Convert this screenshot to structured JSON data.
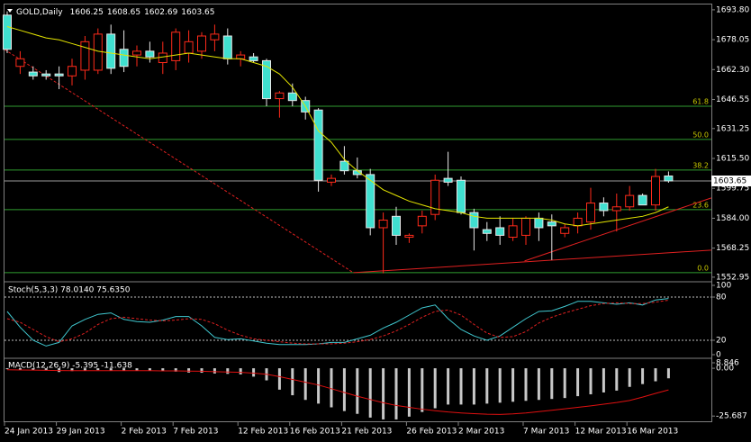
{
  "chart_data": [
    {
      "type": "candlestick",
      "title": "GOLD,Daily",
      "categories": [
        "24 Jan 2013",
        null,
        null,
        null,
        "29 Jan 2013",
        null,
        null,
        null,
        null,
        "2 Feb 2013",
        null,
        null,
        null,
        "7 Feb 2013",
        null,
        null,
        null,
        null,
        "12 Feb 2013",
        null,
        null,
        null,
        "16 Feb 2013",
        null,
        null,
        null,
        "21 Feb 2013",
        null,
        null,
        null,
        null,
        "26 Feb 2013",
        null,
        null,
        null,
        "2 Mar 2013",
        null,
        null,
        null,
        null,
        "7 Mar 2013",
        null,
        null,
        null,
        "12 Mar 2013",
        null,
        null,
        null,
        "16 Mar 2013",
        null,
        null,
        null
      ],
      "open": [
        1691,
        1664,
        1661,
        1660,
        1660,
        1659,
        1662,
        1662,
        1681,
        1673,
        1670,
        1672,
        1666,
        1667,
        1671,
        1672,
        1678,
        1680,
        1668,
        1669,
        1667,
        1647,
        1650,
        1646,
        1641,
        1603,
        1614,
        1609,
        1607,
        1579,
        1585,
        1574,
        1580,
        1586,
        1605,
        1604,
        1587,
        1578,
        1579,
        1574,
        1575,
        1584,
        1582,
        1576,
        1580,
        1582,
        1592,
        1588,
        1590,
        1596,
        1591,
        1606.25
      ],
      "high": [
        1693,
        1672,
        1664,
        1662,
        1664,
        1668,
        1680,
        1684,
        1686,
        1683,
        1675,
        1677,
        1677,
        1684,
        1683,
        1682,
        1686,
        1684,
        1672,
        1671,
        1668,
        1651,
        1655,
        1648,
        1642,
        1607,
        1622,
        1616,
        1610,
        1587,
        1590,
        1576,
        1588,
        1607,
        1619,
        1606,
        1589,
        1582,
        1585,
        1584,
        1585,
        1587,
        1586,
        1581,
        1587,
        1600,
        1595,
        1597,
        1601,
        1597,
        1610,
        1608.65
      ],
      "low": [
        1671,
        1660,
        1657,
        1657,
        1652,
        1654,
        1657,
        1660,
        1660,
        1661,
        1664,
        1666,
        1660,
        1662,
        1666,
        1668,
        1672,
        1665,
        1664,
        1666,
        1643,
        1637,
        1643,
        1636,
        1598,
        1601,
        1607,
        1605,
        1575,
        1555,
        1570,
        1571,
        1576,
        1583,
        1601,
        1586,
        1567,
        1572,
        1570,
        1572,
        1570,
        1572,
        1562,
        1574,
        1576,
        1578,
        1585,
        1577,
        1588,
        1591,
        1588,
        1602.69
      ],
      "close": [
        1673,
        1668,
        1659,
        1659,
        1659,
        1664,
        1677,
        1681,
        1663,
        1664,
        1672,
        1669,
        1671,
        1682,
        1677,
        1680,
        1681,
        1668,
        1670,
        1667,
        1647,
        1650,
        1646,
        1640,
        1604,
        1605,
        1609,
        1607,
        1579,
        1583,
        1575,
        1575,
        1585,
        1604,
        1603,
        1587,
        1579,
        1576,
        1575,
        1580,
        1584,
        1579,
        1580,
        1579,
        1584,
        1592,
        1588,
        1590,
        1596,
        1591,
        1606,
        1603.65
      ],
      "colors": {
        "up": "#ff2a1a",
        "down": "#40e0d0"
      },
      "ma": {
        "color": "#e6e600",
        "values": [
          1685,
          1683,
          1681,
          1679,
          1678,
          1676,
          1674,
          1672,
          1671,
          1670,
          1669,
          1668,
          1669,
          1670,
          1671,
          1670,
          1669,
          1668,
          1668,
          1666,
          1664,
          1660,
          1653,
          1643,
          1630,
          1624,
          1615,
          1609,
          1604,
          1599,
          1596,
          1593,
          1591,
          1589,
          1588,
          1587,
          1585,
          1584,
          1584,
          1584,
          1584,
          1584,
          1583,
          1581,
          1580,
          1581,
          1582,
          1583,
          1584,
          1585,
          1587,
          1590
        ]
      },
      "fib_levels": [
        {
          "value": 1643.0,
          "label": "61.8"
        },
        {
          "value": 1625.5,
          "label": "50.0"
        },
        {
          "value": 1609.4,
          "label": "38.2"
        },
        {
          "value": 1588.5,
          "label": "23.6"
        },
        {
          "value": 1555.3,
          "label": "0.0"
        }
      ],
      "fib_color": "#2f9d2f",
      "trendlines": [
        {
          "x": [
            -0.2,
            26.7
          ],
          "y": [
            1672.9,
            1555.3
          ],
          "color": "#e02020",
          "dashed": true
        },
        {
          "x": [
            26.7,
            54.3
          ],
          "y": [
            1555.3,
            1567.2
          ],
          "color": "#e02020",
          "dashed": false
        },
        {
          "x": [
            39.9,
            54.3
          ],
          "y": [
            1561.5,
            1594.7
          ],
          "color": "#e02020",
          "dashed": false
        }
      ],
      "ylim": [
        1551.0,
        1696.6
      ],
      "yticks": [
        {
          "value": 1693.8,
          "label": "1693.80"
        },
        1678.05,
        {
          "value": 1662.3,
          "label": "1662.30"
        },
        1646.55,
        1631.25,
        {
          "value": 1615.5,
          "label": "1615.50"
        },
        1599.75,
        {
          "value": 1584,
          "label": "1584.00"
        },
        1568.25,
        1552.95
      ]
    },
    {
      "type": "line",
      "title": "Stoch(5,3,3) 78.0140 75.6350",
      "series": [
        {
          "color": "#40c8d0",
          "dashed": false,
          "values": [
            60,
            38,
            20,
            12,
            17,
            40,
            49,
            56,
            58,
            49,
            46,
            45,
            48,
            53,
            53,
            40,
            24,
            21,
            22,
            19,
            16,
            14,
            14,
            14,
            15,
            17,
            17,
            22,
            27,
            37,
            45,
            55,
            65,
            69,
            50,
            35,
            26,
            20,
            26,
            38,
            50,
            60,
            61,
            67,
            74,
            74,
            72,
            70,
            72,
            69,
            76,
            78.014
          ]
        },
        {
          "color": "#e02020",
          "dashed": true,
          "values": [
            50,
            45,
            35,
            25,
            18,
            22,
            30,
            42,
            50,
            52,
            50,
            48,
            47,
            48,
            50,
            49,
            43,
            34,
            27,
            22,
            20,
            18,
            16,
            15,
            15,
            15,
            16,
            18,
            21,
            26,
            33,
            42,
            52,
            60,
            62,
            55,
            42,
            30,
            24,
            25,
            32,
            44,
            52,
            58,
            63,
            68,
            71,
            72,
            71,
            71,
            73,
            75.635
          ]
        }
      ],
      "levels": [
        20,
        80
      ],
      "ylim": [
        0,
        100
      ],
      "yticks": [
        0,
        20,
        80,
        100
      ]
    },
    {
      "type": "macd",
      "title": "MACD(12,26,9) -5.395 -11.638",
      "histogram": {
        "color": "#c8c8c8",
        "values": [
          -0.5,
          -0.8,
          -1.0,
          -1.2,
          -2.0,
          -1.5,
          -1.2,
          -1.0,
          -1.2,
          -1.3,
          -1.4,
          -1.4,
          -1.5,
          -1.8,
          -2.3,
          -2.4,
          -2.8,
          -3.0,
          -3.3,
          -4.5,
          -6.5,
          -11.5,
          -14.5,
          -17,
          -19,
          -21,
          -23,
          -24.5,
          -26.5,
          -27.5,
          -27.5,
          -26,
          -23.5,
          -21.5,
          -19.5,
          -19.5,
          -19.5,
          -19,
          -18.5,
          -18,
          -17.5,
          -17,
          -16.5,
          -16,
          -15,
          -14,
          -13,
          -12,
          -10,
          -8.5,
          -7,
          -5.395
        ]
      },
      "signal": {
        "color": "#e01010",
        "values": [
          -0.8,
          -0.9,
          -1,
          -1.1,
          -1.2,
          -1.3,
          -1.3,
          -1.3,
          -1.3,
          -1.3,
          -1.3,
          -1.3,
          -1.4,
          -1.4,
          -1.5,
          -1.6,
          -1.8,
          -2,
          -2.2,
          -2.6,
          -3.2,
          -4.5,
          -6,
          -7.5,
          -9,
          -11,
          -13,
          -15,
          -16.8,
          -18.5,
          -20,
          -21,
          -22,
          -22.8,
          -23.5,
          -24,
          -24.4,
          -24.7,
          -24.8,
          -24.5,
          -24,
          -23.3,
          -22.6,
          -21.8,
          -21,
          -20.2,
          -19.3,
          -18.4,
          -17.3,
          -15.5,
          -13.5,
          -11.638
        ]
      },
      "ylim": [
        -28.5,
        4.4
      ],
      "yticks": [
        8.846,
        {
          "value": 0,
          "label": "0.00"
        },
        -25.687
      ]
    }
  ]
}
